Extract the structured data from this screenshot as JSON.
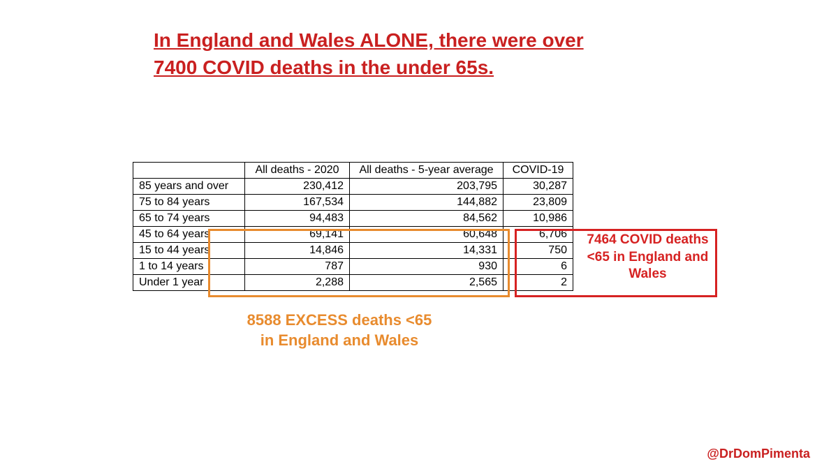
{
  "title": "In England and Wales ALONE, there were over 7400 COVID deaths in the under 65s.",
  "columns": [
    "",
    "All deaths - 2020",
    "All deaths - 5-year average",
    "COVID-19"
  ],
  "rows": [
    {
      "label": "85 years and over",
      "all2020": "230,412",
      "avg5yr": "203,795",
      "covid": "30,287"
    },
    {
      "label": "75 to 84 years",
      "all2020": "167,534",
      "avg5yr": "144,882",
      "covid": "23,809"
    },
    {
      "label": "65 to 74 years",
      "all2020": "94,483",
      "avg5yr": "84,562",
      "covid": "10,986"
    },
    {
      "label": "45 to 64 years",
      "all2020": "69,141",
      "avg5yr": "60,648",
      "covid": "6,706"
    },
    {
      "label": "15 to 44 years",
      "all2020": "14,846",
      "avg5yr": "14,331",
      "covid": "750"
    },
    {
      "label": "1 to 14 years",
      "all2020": "787",
      "avg5yr": "930",
      "covid": "6"
    },
    {
      "label": "Under 1 year",
      "all2020": "2,288",
      "avg5yr": "2,565",
      "covid": "2"
    }
  ],
  "callout_orange": "8588 EXCESS deaths <65 in England and Wales",
  "callout_red": "7464 COVID deaths <65 in England and Wales",
  "handle": "@DrDomPimenta",
  "colors": {
    "title": "#c92020",
    "orange": "#e88b2e",
    "red": "#d62222",
    "handle": "#c92020",
    "border": "#000000",
    "background": "#ffffff"
  },
  "typography": {
    "title_fontsize": 28,
    "table_fontsize": 16,
    "callout_orange_fontsize": 22,
    "callout_red_fontsize": 19,
    "handle_fontsize": 18
  }
}
